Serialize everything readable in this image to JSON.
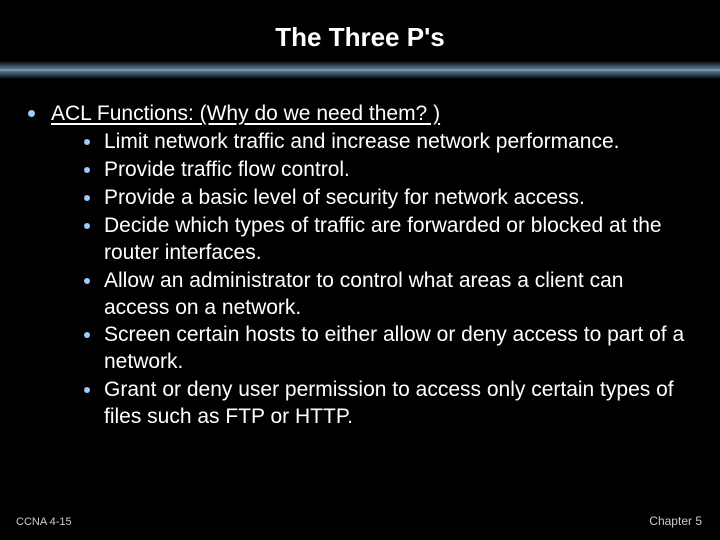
{
  "title": "The Three P's",
  "heading": "ACL Functions:  (Why do we need them? )",
  "items": [
    "Limit network traffic and increase network performance.",
    "Provide traffic flow control.",
    "Provide a basic level of security for network access.",
    "Decide which types of traffic are forwarded or blocked at the router interfaces.",
    "Allow an administrator to control what areas a client can access on a network.",
    "Screen certain hosts to either allow or deny access to part of a network.",
    "Grant or deny user permission to access only certain types of files such as FTP or HTTP."
  ],
  "footer_left": "CCNA 4-15",
  "footer_right": "Chapter 5",
  "colors": {
    "background": "#000000",
    "text": "#ffffff",
    "bullet": "#99ccff",
    "footer": "#cccccc"
  },
  "typography": {
    "title_fontsize": 26,
    "body_fontsize": 21,
    "footer_fontsize": 11,
    "font_family": "Arial"
  }
}
